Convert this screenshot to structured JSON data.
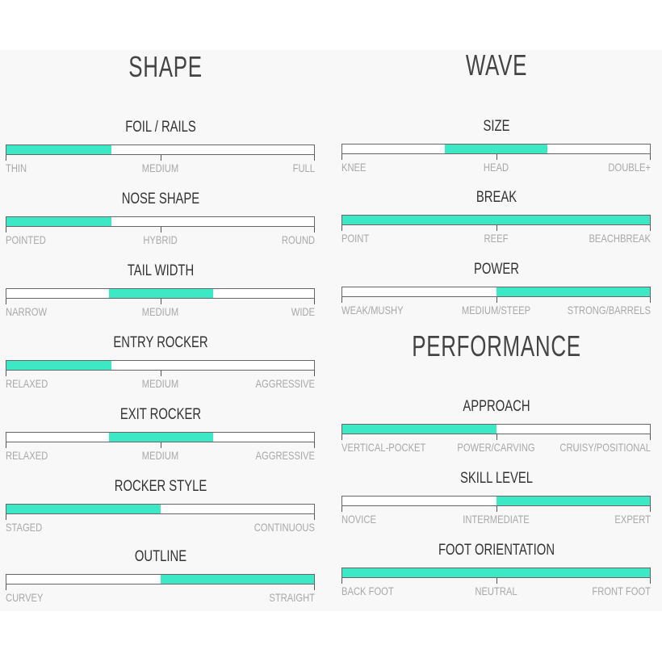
{
  "accent_color": "#3de8c5",
  "shape": {
    "heading": "SHAPE",
    "rows": [
      {
        "title": "FOIL / RAILS",
        "fill": [
          0,
          0.34
        ],
        "labels": [
          "THIN",
          "MEDIUM",
          "FULL"
        ]
      },
      {
        "title": "NOSE SHAPE",
        "fill": [
          0,
          0.34
        ],
        "labels": [
          "POINTED",
          "HYBRID",
          "ROUND"
        ]
      },
      {
        "title": "TAIL WIDTH",
        "fill": [
          0.333,
          0.673
        ],
        "labels": [
          "NARROW",
          "MEDIUM",
          "WIDE"
        ]
      },
      {
        "title": "ENTRY ROCKER",
        "fill": [
          0,
          0.34
        ],
        "labels": [
          "RELAXED",
          "MEDIUM",
          "AGGRESSIVE"
        ]
      },
      {
        "title": "EXIT ROCKER",
        "fill": [
          0.333,
          0.673
        ],
        "labels": [
          "RELAXED",
          "MEDIUM",
          "AGGRESSIVE"
        ]
      },
      {
        "title": "ROCKER STYLE",
        "fill": [
          0,
          0.5
        ],
        "labels": [
          "STAGED",
          "CONTINUOUS"
        ]
      },
      {
        "title": "OUTLINE",
        "fill": [
          0.5,
          1
        ],
        "labels": [
          "CURVEY",
          "STRAIGHT"
        ]
      }
    ]
  },
  "wave": {
    "heading": "WAVE",
    "rows": [
      {
        "title": "SIZE",
        "fill": [
          0.334,
          0.666
        ],
        "labels": [
          "KNEE",
          "HEAD",
          "DOUBLE+"
        ]
      },
      {
        "title": "BREAK",
        "fill": [
          0,
          1
        ],
        "labels": [
          "POINT",
          "REEF",
          "BEACHBREAK"
        ]
      },
      {
        "title": "POWER",
        "fill": [
          0.5,
          1
        ],
        "labels": [
          "WEAK/MUSHY",
          "MEDIUM/STEEP",
          "STRONG/BARRELS"
        ]
      }
    ]
  },
  "performance": {
    "heading": "PERFORMANCE",
    "rows": [
      {
        "title": "APPROACH",
        "fill": [
          0,
          0.5
        ],
        "labels": [
          "VERTICAL-POCKET",
          "POWER/CARVING",
          "CRUISY/POSITIONAL"
        ]
      },
      {
        "title": "SKILL LEVEL",
        "fill": [
          0.5,
          1
        ],
        "labels": [
          "NOVICE",
          "INTERMEDIATE",
          "EXPERT"
        ]
      },
      {
        "title": "FOOT ORIENTATION",
        "fill": [
          0,
          1
        ],
        "labels": [
          "BACK FOOT",
          "NEUTRAL",
          "FRONT FOOT"
        ]
      }
    ]
  }
}
